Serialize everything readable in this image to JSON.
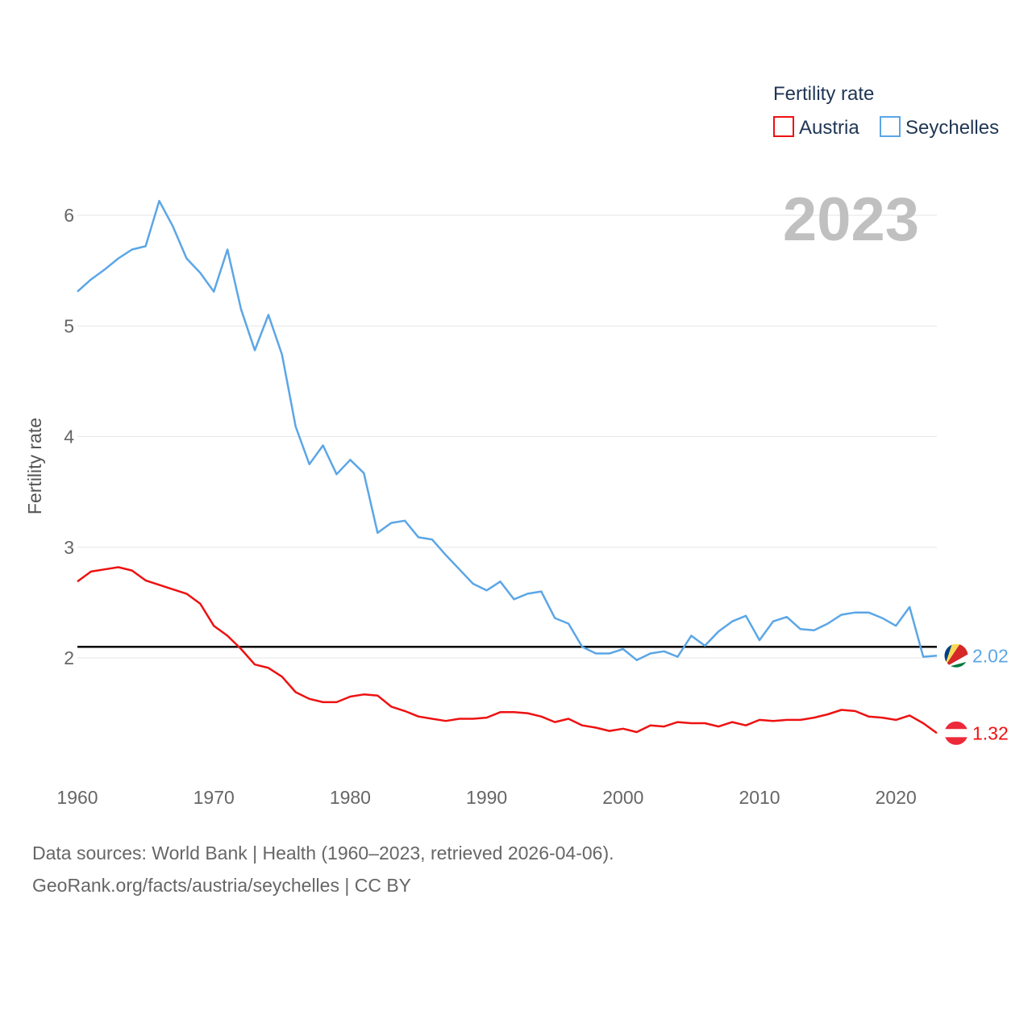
{
  "chart_data": {
    "type": "line",
    "title": "Fertility rate",
    "ylabel": "Fertility rate",
    "xlabel": "",
    "year_label": "2023",
    "xlim": [
      1960,
      2023
    ],
    "ylim": [
      1.0,
      6.4
    ],
    "x_ticks": [
      1960,
      1970,
      1980,
      1990,
      2000,
      2010,
      2020
    ],
    "y_ticks": [
      2,
      3,
      4,
      5,
      6
    ],
    "reference_line": {
      "value": 2.1,
      "color": "#000000"
    },
    "x": [
      1960,
      1961,
      1962,
      1963,
      1964,
      1965,
      1966,
      1967,
      1968,
      1969,
      1970,
      1971,
      1972,
      1973,
      1974,
      1975,
      1976,
      1977,
      1978,
      1979,
      1980,
      1981,
      1982,
      1983,
      1984,
      1985,
      1986,
      1987,
      1988,
      1989,
      1990,
      1991,
      1992,
      1993,
      1994,
      1995,
      1996,
      1997,
      1998,
      1999,
      2000,
      2001,
      2002,
      2003,
      2004,
      2005,
      2006,
      2007,
      2008,
      2009,
      2010,
      2011,
      2012,
      2013,
      2014,
      2015,
      2016,
      2017,
      2018,
      2019,
      2020,
      2021,
      2022,
      2023
    ],
    "series": [
      {
        "name": "Austria",
        "color": "#ee1111",
        "end_label": "1.32",
        "values": [
          2.69,
          2.78,
          2.8,
          2.82,
          2.79,
          2.7,
          2.66,
          2.62,
          2.58,
          2.49,
          2.29,
          2.2,
          2.08,
          1.94,
          1.91,
          1.83,
          1.69,
          1.63,
          1.6,
          1.6,
          1.65,
          1.67,
          1.66,
          1.56,
          1.52,
          1.47,
          1.45,
          1.43,
          1.45,
          1.45,
          1.46,
          1.51,
          1.51,
          1.5,
          1.47,
          1.42,
          1.45,
          1.39,
          1.37,
          1.34,
          1.36,
          1.33,
          1.39,
          1.38,
          1.42,
          1.41,
          1.41,
          1.38,
          1.42,
          1.39,
          1.44,
          1.43,
          1.44,
          1.44,
          1.46,
          1.49,
          1.53,
          1.52,
          1.47,
          1.46,
          1.44,
          1.48,
          1.41,
          1.32
        ]
      },
      {
        "name": "Seychelles",
        "color": "#5ba6e6",
        "end_label": "2.02",
        "values": [
          5.31,
          5.42,
          5.51,
          5.61,
          5.69,
          5.72,
          6.13,
          5.9,
          5.61,
          5.48,
          5.31,
          5.69,
          5.15,
          4.78,
          5.1,
          4.74,
          4.09,
          3.75,
          3.92,
          3.66,
          3.79,
          3.67,
          3.13,
          3.22,
          3.24,
          3.09,
          3.07,
          2.93,
          2.8,
          2.67,
          2.61,
          2.69,
          2.53,
          2.58,
          2.6,
          2.36,
          2.31,
          2.1,
          2.04,
          2.04,
          2.08,
          1.98,
          2.04,
          2.06,
          2.01,
          2.2,
          2.11,
          2.24,
          2.33,
          2.38,
          2.16,
          2.33,
          2.37,
          2.26,
          2.25,
          2.31,
          2.39,
          2.41,
          2.41,
          2.36,
          2.29,
          2.46,
          2.01,
          2.02
        ]
      }
    ],
    "legend": {
      "position": "top-right",
      "title": "Fertility rate"
    }
  },
  "footer": {
    "line1": "Data sources: World Bank | Health (1960–2023, retrieved 2026-04-06).",
    "line2": "GeoRank.org/facts/austria/seychelles | CC BY"
  },
  "flags": {
    "austria": "austria-flag-icon",
    "seychelles": "seychelles-flag-icon"
  }
}
